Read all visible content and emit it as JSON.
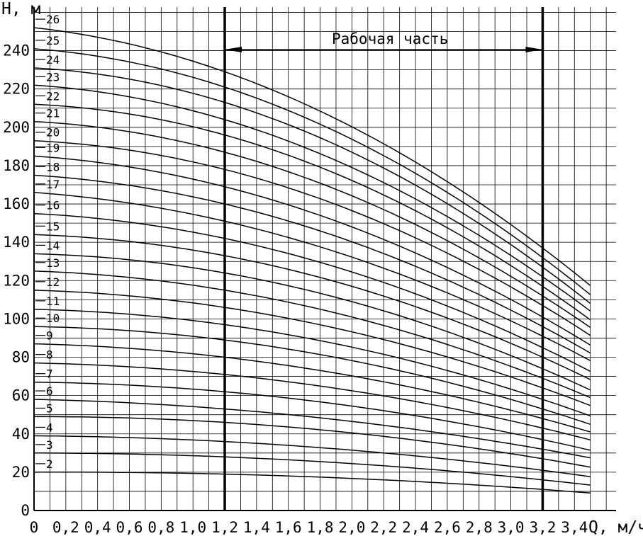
{
  "chart_data": {
    "type": "line",
    "title": "",
    "xlabel": "Q, м/ч",
    "ylabel": "H, м",
    "xlim": [
      0,
      3.5
    ],
    "ylim": [
      0,
      250
    ],
    "grid": true,
    "x_ticks": [
      "0",
      "0,2",
      "0,4",
      "0,6",
      "0,8",
      "1,0",
      "1,2",
      "1,4",
      "1,6",
      "1,8",
      "2,0",
      "2,2",
      "2,4",
      "2,6",
      "2,8",
      "3,0",
      "3,2",
      "3,4"
    ],
    "y_ticks": [
      "0",
      "20",
      "40",
      "60",
      "80",
      "100",
      "120",
      "140",
      "160",
      "180",
      "200",
      "220",
      "240"
    ],
    "working_range": {
      "label": "Рабочая часть",
      "x_start": 1.2,
      "x_end": 3.2
    },
    "x": [
      0,
      1.2,
      3.2,
      3.5
    ],
    "series": [
      {
        "name": "2",
        "values": [
          20,
          19,
          11,
          10
        ]
      },
      {
        "name": "3",
        "values": [
          30,
          28,
          16,
          14
        ]
      },
      {
        "name": "4",
        "values": [
          39,
          36,
          21,
          18
        ]
      },
      {
        "name": "5",
        "values": [
          49,
          46,
          27,
          22
        ]
      },
      {
        "name": "6",
        "values": [
          58,
          53,
          32,
          27
        ]
      },
      {
        "name": "7",
        "values": [
          67,
          62,
          37,
          31
        ]
      },
      {
        "name": "8",
        "values": [
          77,
          71,
          43,
          36
        ]
      },
      {
        "name": "9",
        "values": [
          87,
          80,
          48,
          40
        ]
      },
      {
        "name": "10",
        "values": [
          96,
          89,
          53,
          44
        ]
      },
      {
        "name": "11",
        "values": [
          105,
          97,
          58,
          48
        ]
      },
      {
        "name": "12",
        "values": [
          115,
          106,
          64,
          53
        ]
      },
      {
        "name": "13",
        "values": [
          125,
          115,
          69,
          57
        ]
      },
      {
        "name": "14",
        "values": [
          134,
          124,
          74,
          61
        ]
      },
      {
        "name": "15",
        "values": [
          144,
          133,
          80,
          66
        ]
      },
      {
        "name": "16",
        "values": [
          155,
          142,
          85,
          70
        ]
      },
      {
        "name": "17",
        "values": [
          166,
          151,
          91,
          75
        ]
      },
      {
        "name": "18",
        "values": [
          175,
          160,
          96,
          79
        ]
      },
      {
        "name": "19",
        "values": [
          185,
          169,
          101,
          83
        ]
      },
      {
        "name": "20",
        "values": [
          193,
          178,
          107,
          88
        ]
      },
      {
        "name": "21",
        "values": [
          203,
          187,
          112,
          92
        ]
      },
      {
        "name": "22",
        "values": [
          212,
          196,
          117,
          96
        ]
      },
      {
        "name": "23",
        "values": [
          222,
          204,
          122,
          100
        ]
      },
      {
        "name": "24",
        "values": [
          231,
          213,
          127,
          104
        ]
      },
      {
        "name": "25",
        "values": [
          241,
          221,
          132,
          107
        ]
      },
      {
        "name": "26",
        "values": [
          252,
          229,
          137,
          110
        ]
      }
    ]
  }
}
